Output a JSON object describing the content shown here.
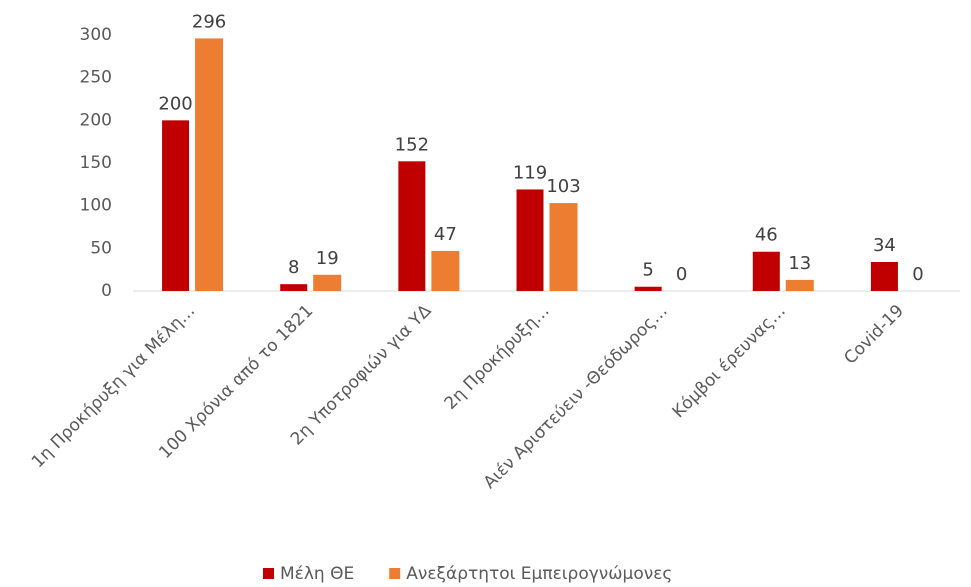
{
  "chart_data": {
    "type": "bar",
    "categories": [
      "1η Προκήρυξη για Μέλη…",
      "100 Χρόνια από το 1821",
      "2η Υποτροφιών για ΥΔ",
      "2η Προκήρυξη…",
      "Αιέν Αριστεύειν -Θεόδωρος…",
      "Κόμβοι έρευνας…",
      "Covid-19"
    ],
    "series": [
      {
        "name": "Μέλη ΘΕ",
        "color": "#c00000",
        "values": [
          200,
          8,
          152,
          119,
          5,
          46,
          34
        ]
      },
      {
        "name": "Ανεξάρτητοι Εμπειρογνώμονες",
        "color": "#ed7d31",
        "values": [
          296,
          19,
          47,
          103,
          0,
          13,
          0
        ]
      }
    ],
    "ylim": [
      0,
      300
    ],
    "yticks": [
      0,
      50,
      100,
      150,
      200,
      250,
      300
    ],
    "grid": false,
    "legend": "bottom"
  }
}
